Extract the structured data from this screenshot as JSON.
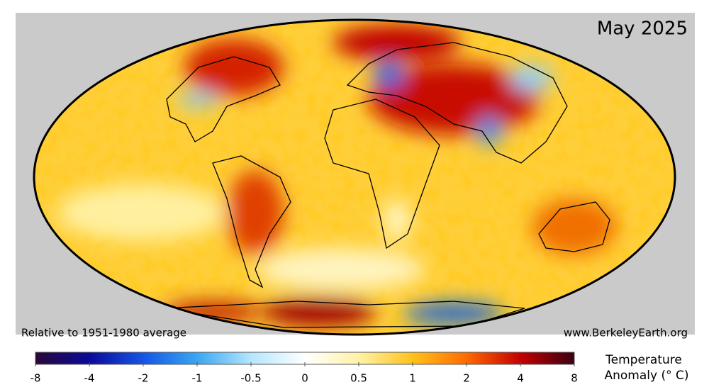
{
  "title": "May 2025",
  "footnote_left": "Relative to 1951-1980 average",
  "footnote_right": "www.BerkeleyEarth.org",
  "colorbar": {
    "label_lines": [
      "Temperature",
      "Anomaly (° C)"
    ],
    "ticks": [
      -8,
      -4,
      -2,
      -1,
      -0.5,
      0,
      0.5,
      1,
      2,
      4,
      8
    ],
    "colors": [
      "#2a0838",
      "#0a0a9a",
      "#1455e6",
      "#3aa6f2",
      "#b4e6ff",
      "#ffffff",
      "#fff2a6",
      "#ffc21a",
      "#ff6a00",
      "#c40000",
      "#3a0010"
    ]
  }
}
